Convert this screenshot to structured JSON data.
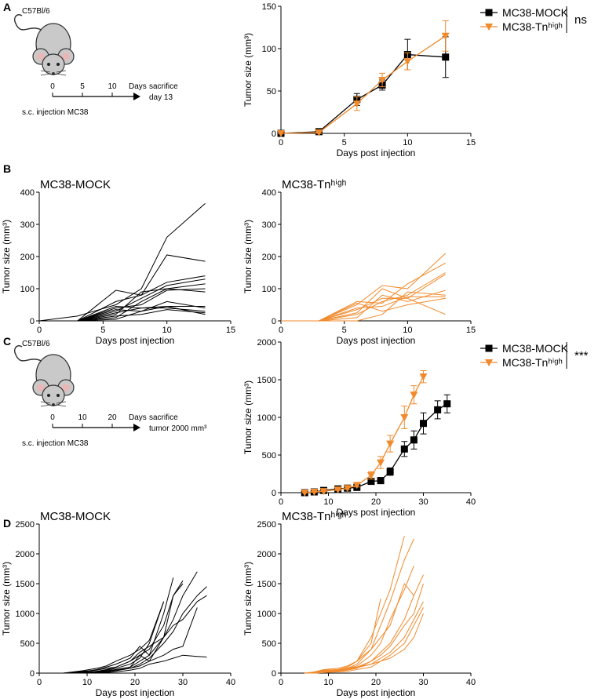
{
  "panel_labels": [
    "A",
    "B",
    "C",
    "D"
  ],
  "diagrams": [
    {
      "strain": "C57Bl/6",
      "timeline_ticks": [
        "0",
        "5",
        "10"
      ],
      "unit": "Days",
      "endpoint": [
        "sacrifice",
        "day 13"
      ],
      "injection": "s.c. injection MC38"
    },
    {
      "strain": "C57Bl/6",
      "timeline_ticks": [
        "0",
        "10",
        "20"
      ],
      "unit": "Days",
      "endpoint": [
        "sacrifice",
        "tumor 2000 mm³"
      ],
      "injection": "s.c. injection MC38"
    }
  ],
  "chart_data": [
    {
      "type": "line",
      "xlabel": "Days post injection",
      "ylabel": "Tumor size (mm³)",
      "xlim": [
        0,
        15
      ],
      "xticks": [
        0,
        5,
        10,
        15
      ],
      "ylim": [
        0,
        150
      ],
      "yticks": [
        0,
        50,
        100,
        150
      ],
      "x": [
        0,
        3,
        6,
        8,
        10,
        13
      ],
      "legend": "right-outside",
      "annotation": "ns",
      "series": [
        {
          "name": "MC38-MOCK",
          "color": "#000000",
          "marker": "square",
          "values": [
            0,
            2,
            40,
            57,
            93,
            90
          ],
          "errors": [
            0,
            1,
            7,
            6,
            18,
            24
          ]
        },
        {
          "name": "MC38-Tnʰⁱᵍʰ",
          "color": "#f08a2c",
          "marker": "triangle-down",
          "values": [
            0,
            1,
            35,
            63,
            85,
            115
          ],
          "errors": [
            0,
            1,
            8,
            8,
            10,
            18
          ]
        }
      ]
    },
    {
      "type": "line",
      "title": "MC38-MOCK",
      "title_color": "#000000",
      "xlabel": "Days post injection",
      "ylabel": "Tumor size (mm³)",
      "xlim": [
        0,
        15
      ],
      "xticks": [
        0,
        5,
        10,
        15
      ],
      "ylim": [
        0,
        400
      ],
      "yticks": [
        0,
        100,
        200,
        300,
        400
      ],
      "x": [
        0,
        3,
        6,
        8,
        10,
        13
      ],
      "series": [
        {
          "color": "#000000",
          "values": [
            0,
            15,
            50,
            100,
            260,
            365
          ]
        },
        {
          "color": "#000000",
          "values": [
            0,
            0,
            60,
            80,
            205,
            185
          ]
        },
        {
          "color": "#000000",
          "values": [
            0,
            0,
            95,
            80,
            120,
            140
          ]
        },
        {
          "color": "#000000",
          "values": [
            0,
            0,
            30,
            70,
            110,
            130
          ]
        },
        {
          "color": "#000000",
          "values": [
            0,
            0,
            20,
            90,
            100,
            115
          ]
        },
        {
          "color": "#000000",
          "values": [
            0,
            0,
            40,
            50,
            95,
            100
          ]
        },
        {
          "color": "#000000",
          "values": [
            0,
            0,
            10,
            60,
            100,
            90
          ]
        },
        {
          "color": "#000000",
          "values": [
            0,
            0,
            35,
            30,
            45,
            45
          ]
        },
        {
          "color": "#000000",
          "values": [
            0,
            0,
            25,
            40,
            40,
            30
          ]
        },
        {
          "color": "#000000",
          "values": [
            0,
            0,
            15,
            20,
            35,
            25
          ]
        },
        {
          "color": "#000000",
          "values": [
            0,
            0,
            5,
            30,
            60,
            40
          ]
        },
        {
          "color": "#000000",
          "values": [
            0,
            0,
            45,
            40,
            45,
            20
          ]
        }
      ]
    },
    {
      "type": "line",
      "title": "MC38-Tnʰⁱᵍʰ",
      "title_color": "#f08a2c",
      "xlabel": "Days post injection",
      "ylabel": "Tumor size (mm³)",
      "xlim": [
        0,
        15
      ],
      "xticks": [
        0,
        5,
        10,
        15
      ],
      "ylim": [
        0,
        400
      ],
      "yticks": [
        0,
        100,
        200,
        300,
        400
      ],
      "x": [
        0,
        3,
        6,
        8,
        10,
        13
      ],
      "series": [
        {
          "color": "#f08a2c",
          "values": [
            0,
            0,
            50,
            110,
            100,
            210
          ]
        },
        {
          "color": "#f08a2c",
          "values": [
            0,
            0,
            60,
            55,
            115,
            180
          ]
        },
        {
          "color": "#f08a2c",
          "values": [
            0,
            0,
            20,
            60,
            80,
            150
          ]
        },
        {
          "color": "#f08a2c",
          "values": [
            0,
            0,
            35,
            70,
            70,
            145
          ]
        },
        {
          "color": "#f08a2c",
          "values": [
            0,
            0,
            10,
            80,
            60,
            95
          ]
        },
        {
          "color": "#f08a2c",
          "values": [
            0,
            0,
            0,
            20,
            90,
            80
          ]
        },
        {
          "color": "#f08a2c",
          "values": [
            0,
            0,
            40,
            45,
            75,
            75
          ]
        },
        {
          "color": "#f08a2c",
          "values": [
            0,
            0,
            25,
            100,
            70,
            20
          ]
        },
        {
          "color": "#f08a2c",
          "values": [
            0,
            0,
            55,
            30,
            50,
            70
          ]
        }
      ]
    },
    {
      "type": "line",
      "xlabel": "Days post injection",
      "ylabel": "Tumor size (mm³)",
      "xlim": [
        0,
        40
      ],
      "xticks": [
        0,
        10,
        20,
        30,
        40
      ],
      "ylim": [
        0,
        2000
      ],
      "yticks": [
        0,
        500,
        1000,
        1500,
        2000
      ],
      "x": [
        5,
        7,
        9,
        12,
        14,
        16,
        19,
        21,
        23,
        26,
        28,
        30,
        33,
        35
      ],
      "legend": "right-outside",
      "annotation": "***",
      "series": [
        {
          "name": "MC38-MOCK",
          "color": "#000000",
          "marker": "square",
          "values": [
            0,
            10,
            30,
            50,
            60,
            70,
            150,
            160,
            280,
            580,
            700,
            920,
            1100,
            1180
          ],
          "errors": [
            0,
            5,
            10,
            10,
            15,
            20,
            30,
            40,
            50,
            100,
            120,
            140,
            120,
            120
          ]
        },
        {
          "name": "MC38-Tnʰⁱᵍʰ",
          "color": "#f08a2c",
          "marker": "triangle-down",
          "values": [
            0,
            10,
            20,
            40,
            60,
            100,
            230,
            400,
            650,
            1000,
            1300,
            1540,
            null,
            null
          ],
          "errors": [
            0,
            5,
            8,
            10,
            15,
            25,
            50,
            80,
            110,
            150,
            120,
            80,
            null,
            null
          ]
        }
      ]
    },
    {
      "type": "line",
      "title": "MC38-MOCK",
      "title_color": "#000000",
      "xlabel": "Days post injection",
      "ylabel": "Tumor size (mm³)",
      "xlim": [
        0,
        40
      ],
      "xticks": [
        0,
        10,
        20,
        30,
        40
      ],
      "ylim": [
        0,
        2500
      ],
      "yticks": [
        0,
        500,
        1000,
        1500,
        2000,
        2500
      ],
      "x": [
        5,
        7,
        9,
        12,
        14,
        16,
        19,
        21,
        23,
        26,
        28,
        30,
        33,
        35
      ],
      "series": [
        {
          "color": "#000000",
          "values": [
            0,
            0,
            20,
            30,
            50,
            80,
            150,
            250,
            500,
            1200,
            null,
            null,
            null,
            null
          ]
        },
        {
          "color": "#000000",
          "values": [
            0,
            10,
            30,
            50,
            80,
            100,
            200,
            300,
            400,
            800,
            1300,
            1550,
            null,
            null
          ]
        },
        {
          "color": "#000000",
          "values": [
            0,
            0,
            10,
            20,
            40,
            60,
            100,
            200,
            300,
            600,
            900,
            1300,
            1700,
            null
          ]
        },
        {
          "color": "#000000",
          "values": [
            0,
            0,
            0,
            10,
            30,
            50,
            80,
            150,
            250,
            500,
            700,
            1000,
            1300,
            1450
          ]
        },
        {
          "color": "#000000",
          "values": [
            0,
            5,
            10,
            30,
            60,
            100,
            200,
            350,
            450,
            600,
            800,
            900,
            1200,
            1300
          ]
        },
        {
          "color": "#000000",
          "values": [
            0,
            0,
            5,
            10,
            20,
            40,
            80,
            120,
            200,
            300,
            400,
            450,
            1100,
            null
          ]
        },
        {
          "color": "#000000",
          "values": [
            0,
            0,
            0,
            5,
            10,
            20,
            50,
            80,
            150,
            200,
            250,
            300,
            280,
            270
          ]
        },
        {
          "color": "#000000",
          "values": [
            0,
            20,
            40,
            80,
            120,
            200,
            300,
            400,
            550,
            1200,
            null,
            null,
            null,
            null
          ]
        },
        {
          "color": "#000000",
          "values": [
            0,
            0,
            20,
            60,
            100,
            150,
            250,
            450,
            300,
            1000,
            1600,
            null,
            null,
            null
          ]
        },
        {
          "color": "#000000",
          "values": [
            0,
            0,
            10,
            20,
            30,
            60,
            100,
            300,
            200,
            600,
            1300,
            1500,
            null,
            null
          ]
        }
      ]
    },
    {
      "type": "line",
      "title": "MC38-Tnʰⁱᵍʰ",
      "title_color": "#f08a2c",
      "xlabel": "Days post injection",
      "ylabel": "Tumor size (mm³)",
      "xlim": [
        0,
        40
      ],
      "xticks": [
        0,
        10,
        20,
        30,
        40
      ],
      "ylim": [
        0,
        2500
      ],
      "yticks": [
        0,
        500,
        1000,
        1500,
        2000,
        2500
      ],
      "x": [
        5,
        7,
        9,
        12,
        14,
        16,
        19,
        21,
        23,
        26,
        28,
        30
      ],
      "series": [
        {
          "color": "#f08a2c",
          "values": [
            0,
            20,
            40,
            60,
            100,
            200,
            600,
            1000,
            1400,
            2300,
            null,
            null
          ]
        },
        {
          "color": "#f08a2c",
          "values": [
            0,
            10,
            30,
            50,
            80,
            150,
            400,
            800,
            1200,
            1900,
            2250,
            null
          ]
        },
        {
          "color": "#f08a2c",
          "values": [
            0,
            5,
            20,
            40,
            80,
            120,
            300,
            500,
            900,
            1400,
            1800,
            null
          ]
        },
        {
          "color": "#f08a2c",
          "values": [
            0,
            0,
            10,
            30,
            50,
            80,
            200,
            350,
            500,
            900,
            1300,
            1650
          ]
        },
        {
          "color": "#f08a2c",
          "values": [
            0,
            10,
            50,
            60,
            100,
            200,
            500,
            1250,
            null,
            null,
            null,
            null
          ]
        },
        {
          "color": "#f08a2c",
          "values": [
            0,
            0,
            20,
            40,
            60,
            100,
            200,
            300,
            450,
            800,
            1000,
            1500
          ]
        },
        {
          "color": "#f08a2c",
          "values": [
            0,
            5,
            30,
            50,
            80,
            100,
            150,
            250,
            350,
            600,
            900,
            1200
          ]
        },
        {
          "color": "#f08a2c",
          "values": [
            0,
            0,
            10,
            20,
            30,
            60,
            100,
            200,
            300,
            500,
            800,
            1100
          ]
        },
        {
          "color": "#f08a2c",
          "values": [
            0,
            20,
            60,
            80,
            120,
            200,
            400,
            600,
            800,
            1500,
            1300,
            null
          ]
        },
        {
          "color": "#f08a2c",
          "values": [
            0,
            10,
            40,
            50,
            70,
            90,
            150,
            200,
            250,
            400,
            600,
            1000
          ]
        }
      ]
    }
  ]
}
